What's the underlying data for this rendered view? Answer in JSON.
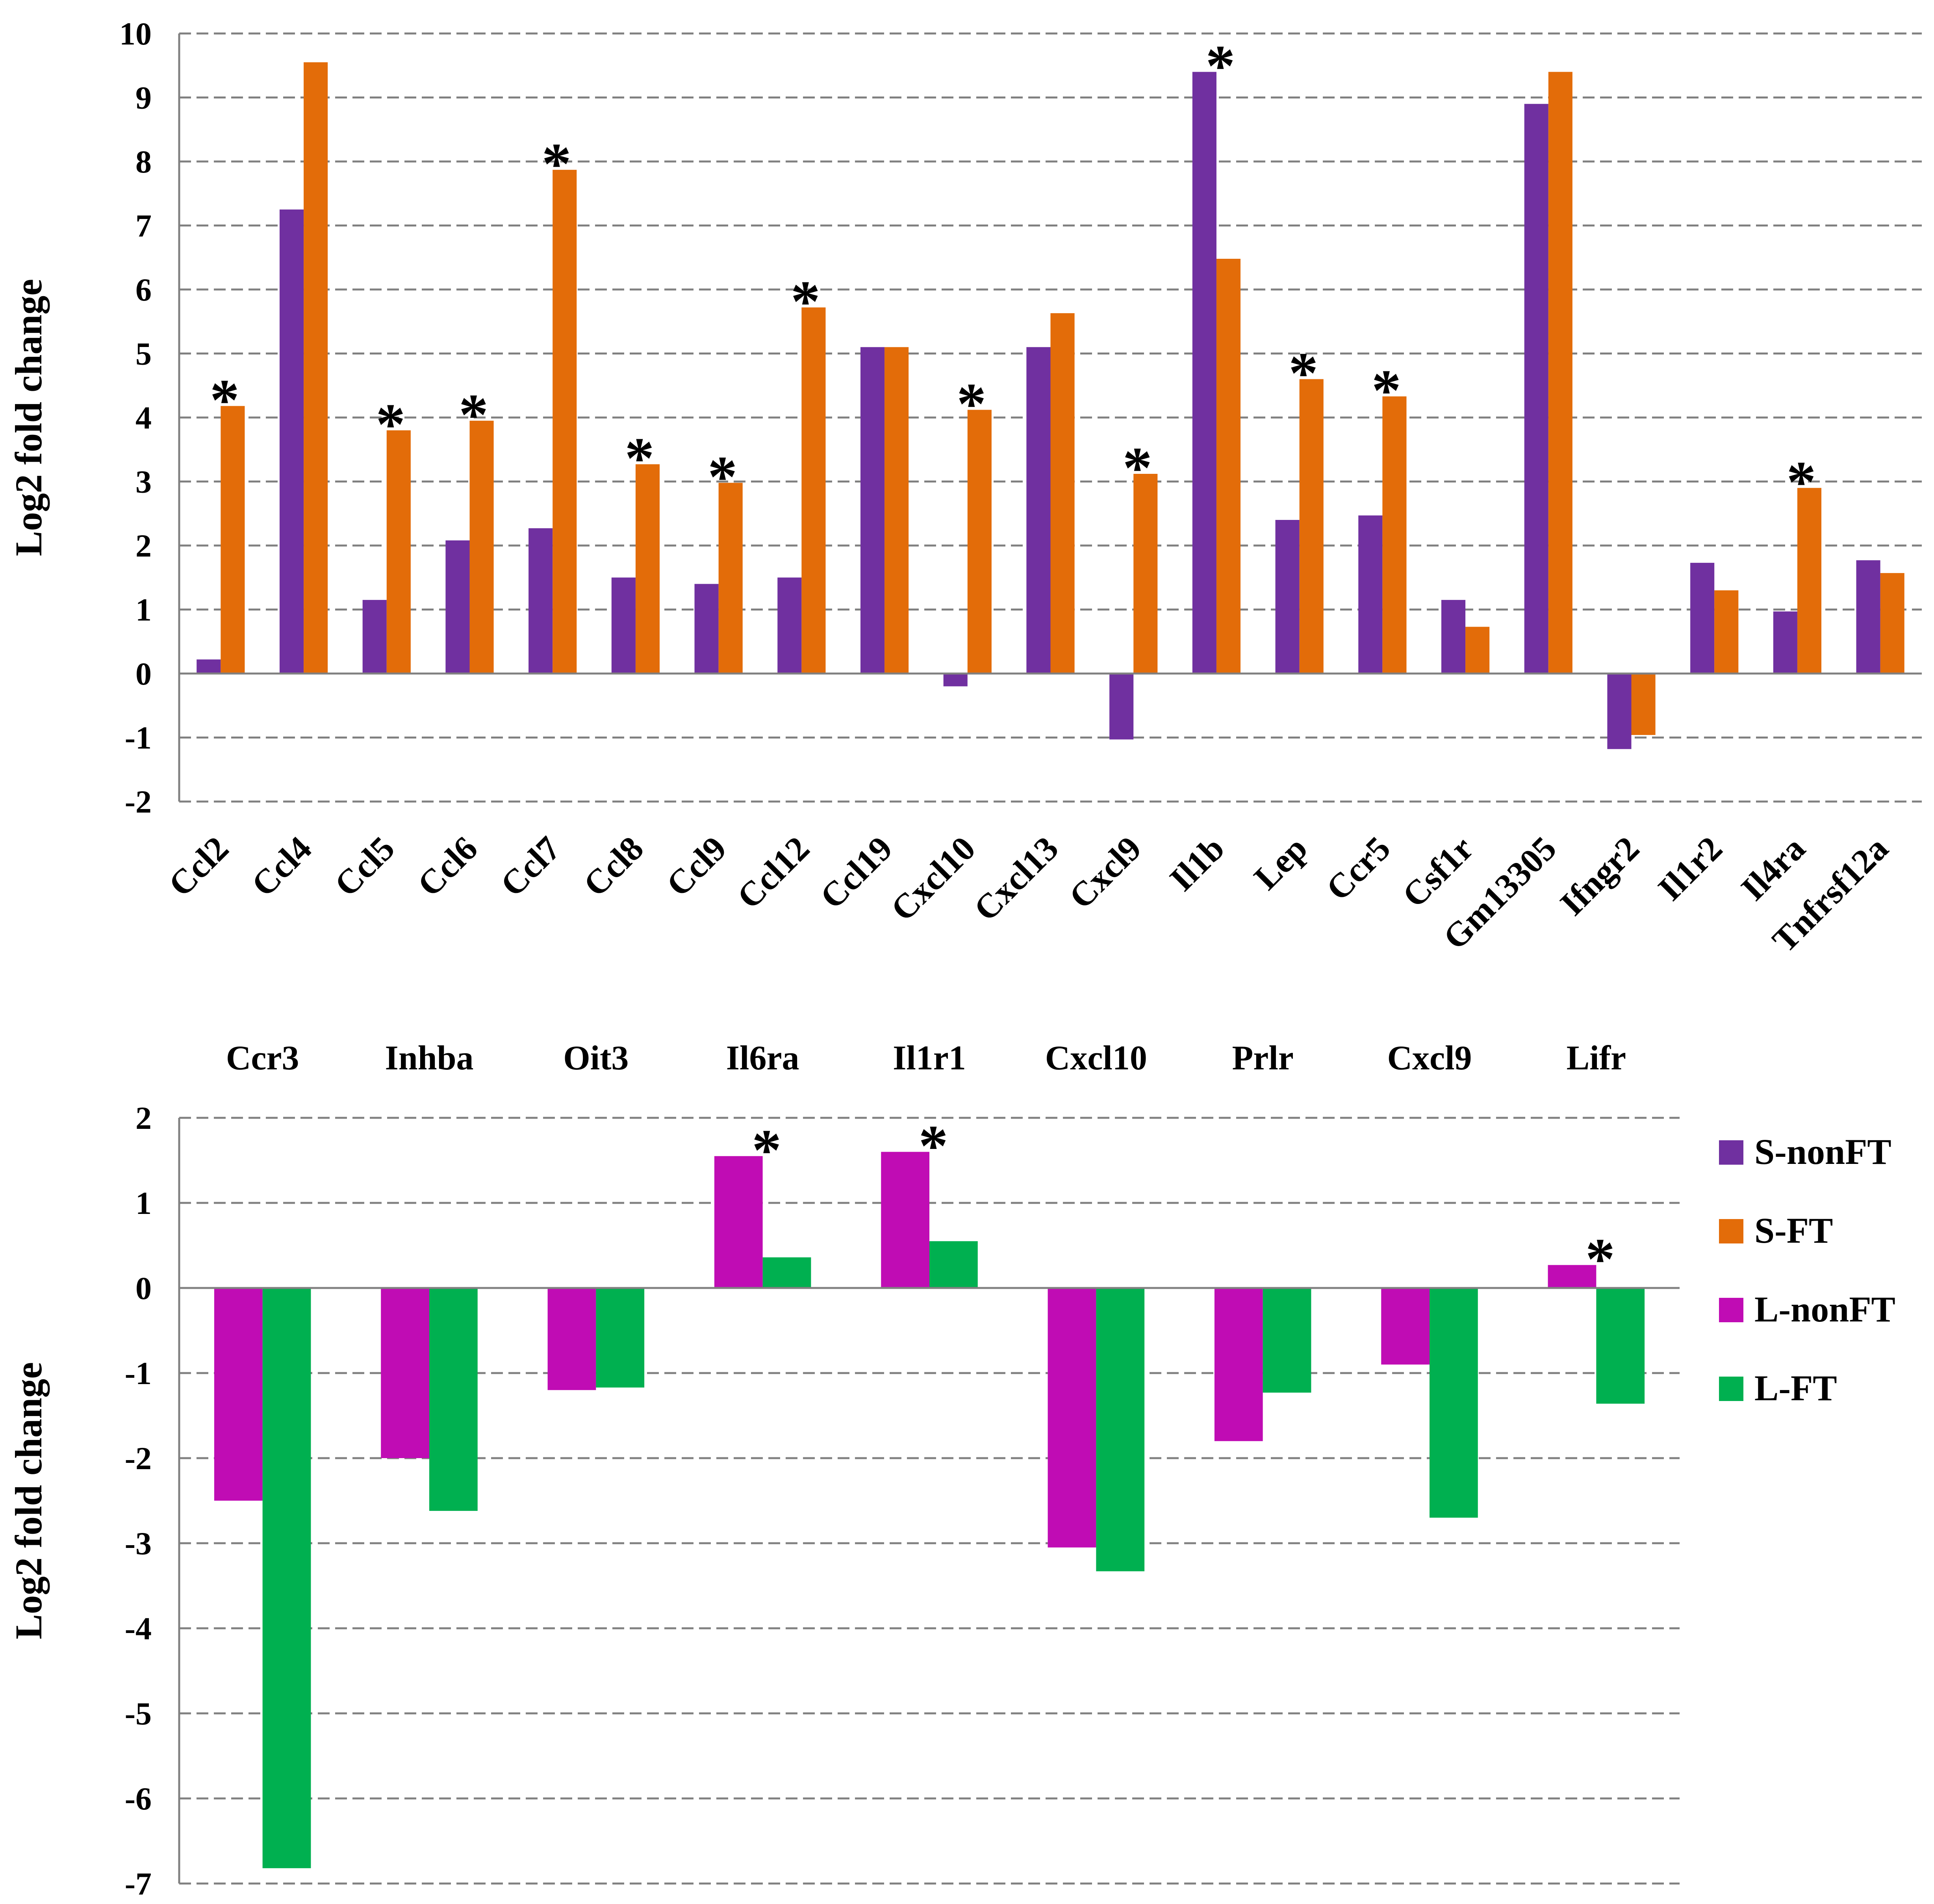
{
  "chart_data": [
    {
      "type": "bar",
      "ylabel": "Log2 fold change",
      "ylim": [
        -2,
        10
      ],
      "yticks": [
        "-2",
        "-1",
        "0",
        "1",
        "2",
        "3",
        "4",
        "5",
        "6",
        "7",
        "8",
        "9",
        "10"
      ],
      "grid": true,
      "categories": [
        "Ccl2",
        "Ccl4",
        "Ccl5",
        "Ccl6",
        "Ccl7",
        "Ccl8",
        "Ccl9",
        "Ccl12",
        "Ccl19",
        "Cxcl10",
        "Cxcl13",
        "Cxcl9",
        "Il1b",
        "Lep",
        "Ccr5",
        "Csf1r",
        "Gm13305",
        "Ifngr2",
        "Il1r2",
        "Il4ra",
        "Tnfrsf12a"
      ],
      "series": [
        {
          "name": "S-nonFT",
          "color": "#7030A0",
          "values": [
            0.22,
            7.25,
            1.15,
            2.08,
            2.27,
            1.5,
            1.4,
            1.5,
            5.1,
            -0.2,
            5.1,
            -1.03,
            9.4,
            2.4,
            2.47,
            1.15,
            8.9,
            -1.18,
            1.73,
            0.97,
            1.77
          ]
        },
        {
          "name": "S-FT",
          "color": "#E36C09",
          "values": [
            4.18,
            9.55,
            3.8,
            3.95,
            7.87,
            3.27,
            2.98,
            5.72,
            5.1,
            4.12,
            5.63,
            3.12,
            6.48,
            4.6,
            4.33,
            0.73,
            9.4,
            -0.96,
            1.3,
            2.9,
            1.57
          ]
        }
      ],
      "significant": [
        "Ccl2",
        "Ccl5",
        "Ccl6",
        "Ccl7",
        "Ccl8",
        "Ccl9",
        "Ccl12",
        "Cxcl10",
        "Cxcl9",
        "Il1b",
        "Lep",
        "Ccr5",
        "Il4ra"
      ],
      "significance_marker": "*"
    },
    {
      "type": "bar",
      "ylabel": "Log2 fold change",
      "ylim": [
        -7,
        2
      ],
      "yticks": [
        "-7",
        "-6",
        "-5",
        "-4",
        "-3",
        "-2",
        "-1",
        "0",
        "1",
        "2"
      ],
      "grid": true,
      "categories": [
        "Ccr3",
        "Inhba",
        "Oit3",
        "Il6ra",
        "Il1r1",
        "Cxcl10",
        "Prlr",
        "Cxcl9",
        "Lifr"
      ],
      "series": [
        {
          "name": "L-nonFT",
          "color": "#C00CB4",
          "values": [
            -2.5,
            -2.0,
            -1.2,
            1.55,
            1.6,
            -3.05,
            -1.8,
            -0.9,
            0.27
          ]
        },
        {
          "name": "L-FT",
          "color": "#00B050",
          "values": [
            -6.82,
            -2.62,
            -1.17,
            0.36,
            0.55,
            -3.33,
            -1.23,
            -2.7,
            -1.36
          ]
        }
      ],
      "significant": [
        "Il6ra",
        "Il1r1",
        "Lifr"
      ],
      "significance_marker": "*"
    }
  ],
  "legend": [
    {
      "name": "S-nonFT",
      "color": "#7030A0"
    },
    {
      "name": "S-FT",
      "color": "#E36C09"
    },
    {
      "name": "L-nonFT",
      "color": "#C00CB4"
    },
    {
      "name": "L-FT",
      "color": "#00B050"
    }
  ]
}
